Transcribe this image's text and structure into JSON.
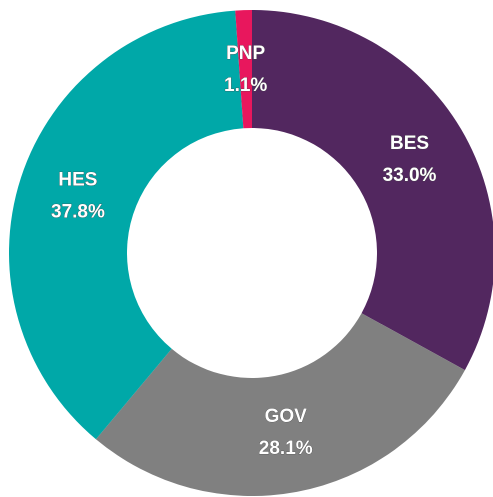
{
  "chart_data": {
    "type": "donut",
    "categories": [
      "BES",
      "GOV",
      "HES",
      "PNP"
    ],
    "values": [
      33.0,
      28.1,
      37.8,
      1.1
    ],
    "value_labels": [
      "33.0%",
      "28.1%",
      "37.8%",
      "1.1%"
    ],
    "colors": [
      "#52275f",
      "#808080",
      "#00a8a8",
      "#e8175d"
    ]
  }
}
